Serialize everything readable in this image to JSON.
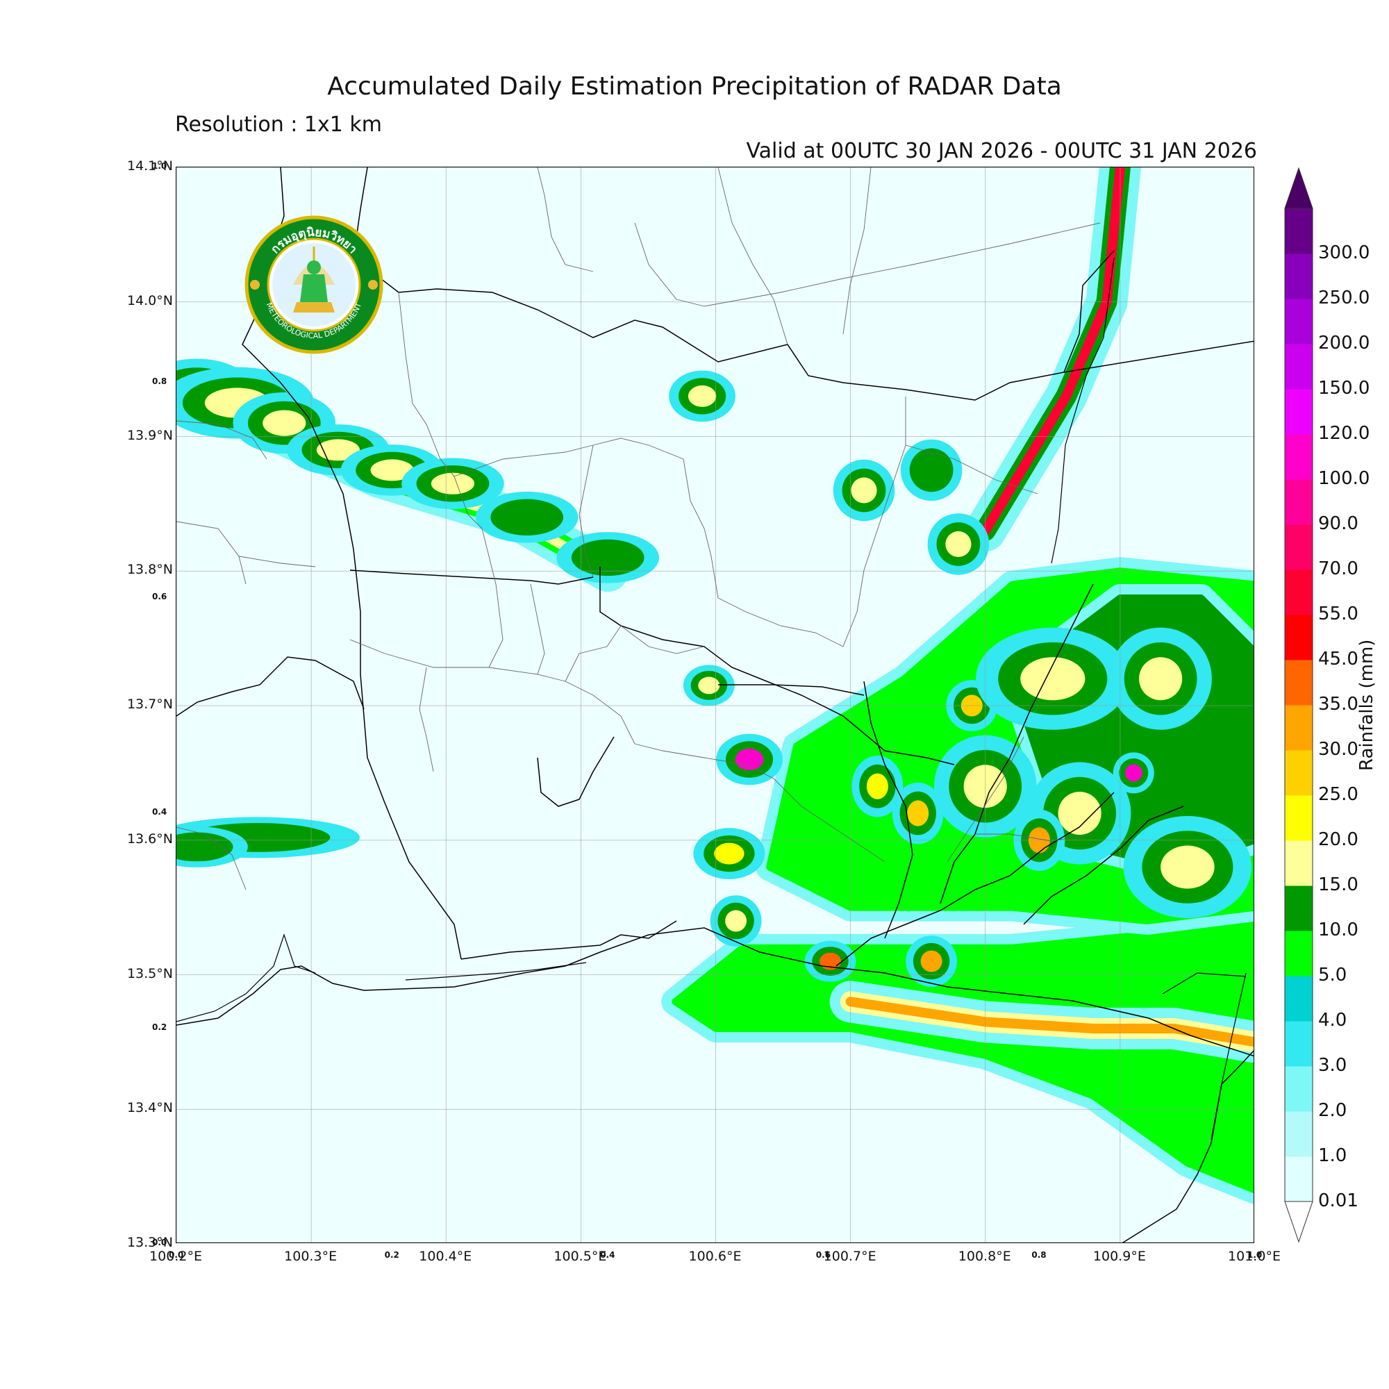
{
  "header": {
    "title": "Accumulated Daily Estimation Precipitation of RADAR Data",
    "resolution": "Resolution : 1x1 km",
    "valid": "Valid at 00UTC 30 JAN 2026 - 00UTC 31 JAN 2026"
  },
  "logo": {
    "thai_text": "กรมอุตุนิยมวิทยา",
    "english_text": "METEOROLOGICAL DEPARTMENT"
  },
  "map": {
    "lon_range": [
      100.2,
      101.0
    ],
    "lat_range": [
      13.3,
      14.1
    ],
    "lat_ticks": [
      {
        "value": 14.1,
        "label": "14.1°N"
      },
      {
        "value": 14.0,
        "label": "14.0°N"
      },
      {
        "value": 13.9,
        "label": "13.9°N"
      },
      {
        "value": 13.8,
        "label": "13.8°N"
      },
      {
        "value": 13.7,
        "label": "13.7°N"
      },
      {
        "value": 13.6,
        "label": "13.6°N"
      },
      {
        "value": 13.5,
        "label": "13.5°N"
      },
      {
        "value": 13.4,
        "label": "13.4°N"
      },
      {
        "value": 13.3,
        "label": "13.3°N"
      }
    ],
    "lon_ticks": [
      {
        "value": 100.2,
        "label": "100.2°E"
      },
      {
        "value": 100.3,
        "label": "100.3°E"
      },
      {
        "value": 100.4,
        "label": "100.4°E"
      },
      {
        "value": 100.5,
        "label": "100.5°E"
      },
      {
        "value": 100.6,
        "label": "100.6°E"
      },
      {
        "value": 100.7,
        "label": "100.7°E"
      },
      {
        "value": 100.8,
        "label": "100.8°E"
      },
      {
        "value": 100.9,
        "label": "100.9°E"
      },
      {
        "value": 101.0,
        "label": "101.0°E"
      }
    ],
    "minor_y_ticks": [
      {
        "value": 1.0,
        "label": "1.0"
      },
      {
        "value": 0.8,
        "label": "0.8"
      },
      {
        "value": 0.6,
        "label": "0.6"
      },
      {
        "value": 0.4,
        "label": "0.4"
      },
      {
        "value": 0.2,
        "label": "0.2"
      },
      {
        "value": 0.0,
        "label": "0.0"
      }
    ],
    "minor_x_ticks": [
      {
        "value": 0.0,
        "label": "0.0"
      },
      {
        "value": 0.2,
        "label": "0.2"
      },
      {
        "value": 0.4,
        "label": "0.4"
      },
      {
        "value": 0.6,
        "label": "0.6"
      },
      {
        "value": 0.8,
        "label": "0.8"
      },
      {
        "value": 1.0,
        "label": "1.0"
      }
    ],
    "rain_cells": [
      {
        "lon": 100.215,
        "lat": 13.935,
        "rx": 0.022,
        "ry": 0.012,
        "mm": 15
      },
      {
        "lon": 100.245,
        "lat": 13.925,
        "rx": 0.03,
        "ry": 0.014,
        "mm": 15
      },
      {
        "lon": 100.28,
        "lat": 13.91,
        "rx": 0.02,
        "ry": 0.012,
        "mm": 15
      },
      {
        "lon": 100.32,
        "lat": 13.89,
        "rx": 0.02,
        "ry": 0.01,
        "mm": 15
      },
      {
        "lon": 100.36,
        "lat": 13.875,
        "rx": 0.02,
        "ry": 0.01,
        "mm": 15
      },
      {
        "lon": 100.405,
        "lat": 13.865,
        "rx": 0.02,
        "ry": 0.01,
        "mm": 15
      },
      {
        "lon": 100.46,
        "lat": 13.84,
        "rx": 0.02,
        "ry": 0.01,
        "mm": 10
      },
      {
        "lon": 100.52,
        "lat": 13.81,
        "rx": 0.02,
        "ry": 0.01,
        "mm": 10
      },
      {
        "lon": 100.26,
        "lat": 13.602,
        "rx": 0.04,
        "ry": 0.008,
        "mm": 10
      },
      {
        "lon": 100.215,
        "lat": 13.595,
        "rx": 0.02,
        "ry": 0.008,
        "mm": 10
      },
      {
        "lon": 100.59,
        "lat": 13.93,
        "rx": 0.013,
        "ry": 0.01,
        "mm": 15
      },
      {
        "lon": 100.625,
        "lat": 13.66,
        "rx": 0.013,
        "ry": 0.01,
        "mm": 100
      },
      {
        "lon": 100.61,
        "lat": 13.59,
        "rx": 0.014,
        "ry": 0.01,
        "mm": 20
      },
      {
        "lon": 100.595,
        "lat": 13.715,
        "rx": 0.01,
        "ry": 0.008,
        "mm": 15
      },
      {
        "lon": 100.615,
        "lat": 13.54,
        "rx": 0.01,
        "ry": 0.01,
        "mm": 15
      },
      {
        "lon": 100.685,
        "lat": 13.51,
        "rx": 0.01,
        "ry": 0.008,
        "mm": 35
      },
      {
        "lon": 100.71,
        "lat": 13.86,
        "rx": 0.012,
        "ry": 0.012,
        "mm": 15
      },
      {
        "lon": 100.76,
        "lat": 13.875,
        "rx": 0.012,
        "ry": 0.012,
        "mm": 10
      },
      {
        "lon": 100.78,
        "lat": 13.82,
        "rx": 0.012,
        "ry": 0.012,
        "mm": 15
      },
      {
        "lon": 100.91,
        "lat": 13.65,
        "rx": 0.008,
        "ry": 0.008,
        "mm": 100
      },
      {
        "lon": 100.79,
        "lat": 13.7,
        "rx": 0.01,
        "ry": 0.01,
        "mm": 25
      },
      {
        "lon": 100.76,
        "lat": 13.51,
        "rx": 0.01,
        "ry": 0.01,
        "mm": 30
      },
      {
        "lon": 100.8,
        "lat": 13.64,
        "rx": 0.02,
        "ry": 0.02,
        "mm": 15
      },
      {
        "lon": 100.87,
        "lat": 13.62,
        "rx": 0.02,
        "ry": 0.02,
        "mm": 15
      },
      {
        "lon": 100.95,
        "lat": 13.58,
        "rx": 0.025,
        "ry": 0.02,
        "mm": 15
      },
      {
        "lon": 100.85,
        "lat": 13.72,
        "rx": 0.03,
        "ry": 0.02,
        "mm": 15
      },
      {
        "lon": 100.93,
        "lat": 13.72,
        "rx": 0.02,
        "ry": 0.02,
        "mm": 15
      },
      {
        "lon": 100.84,
        "lat": 13.6,
        "rx": 0.01,
        "ry": 0.012,
        "mm": 30
      },
      {
        "lon": 100.75,
        "lat": 13.62,
        "rx": 0.01,
        "ry": 0.012,
        "mm": 25
      },
      {
        "lon": 100.72,
        "lat": 13.64,
        "rx": 0.01,
        "ry": 0.012,
        "mm": 20
      }
    ],
    "rain_bands": [
      {
        "points": [
          [
            100.2,
            13.94
          ],
          [
            100.26,
            13.91
          ],
          [
            100.35,
            13.87
          ],
          [
            100.45,
            13.84
          ],
          [
            100.52,
            13.8
          ]
        ],
        "width_mm": 5,
        "core_mm": 15
      },
      {
        "points": [
          [
            100.9,
            14.1
          ],
          [
            100.89,
            14.0
          ],
          [
            100.86,
            13.93
          ],
          [
            100.83,
            13.88
          ],
          [
            100.8,
            13.83
          ]
        ],
        "width_mm": 10,
        "core_mm": 55
      },
      {
        "points": [
          [
            100.7,
            13.48
          ],
          [
            100.8,
            13.465
          ],
          [
            100.88,
            13.46
          ],
          [
            100.94,
            13.46
          ],
          [
            101.0,
            13.45
          ]
        ],
        "width_mm": 15,
        "core_mm": 30
      }
    ],
    "region_fills": [
      {
        "points": [
          [
            100.57,
            13.48
          ],
          [
            100.62,
            13.52
          ],
          [
            100.72,
            13.52
          ],
          [
            100.82,
            13.52
          ],
          [
            100.92,
            13.53
          ],
          [
            101.0,
            13.58
          ],
          [
            101.0,
            13.34
          ],
          [
            100.95,
            13.36
          ],
          [
            100.88,
            13.41
          ],
          [
            100.8,
            13.44
          ],
          [
            100.7,
            13.46
          ],
          [
            100.6,
            13.46
          ]
        ],
        "mm": 5
      },
      {
        "points": [
          [
            100.66,
            13.67
          ],
          [
            100.74,
            13.72
          ],
          [
            100.82,
            13.79
          ],
          [
            100.9,
            13.8
          ],
          [
            101.0,
            13.79
          ],
          [
            101.0,
            13.55
          ],
          [
            100.92,
            13.54
          ],
          [
            100.82,
            13.55
          ],
          [
            100.7,
            13.55
          ],
          [
            100.64,
            13.58
          ]
        ],
        "mm": 5
      },
      {
        "points": [
          [
            100.82,
            13.72
          ],
          [
            100.9,
            13.78
          ],
          [
            100.96,
            13.78
          ],
          [
            101.0,
            13.74
          ],
          [
            101.0,
            13.6
          ],
          [
            100.94,
            13.58
          ],
          [
            100.86,
            13.6
          ]
        ],
        "mm": 10
      }
    ]
  },
  "colorbar": {
    "label": "Rainfalls (mm)",
    "levels": [
      {
        "value": "0.01",
        "color": "#e0ffff"
      },
      {
        "value": "1.0",
        "color": "#b4fafa"
      },
      {
        "value": "2.0",
        "color": "#7ef7f7"
      },
      {
        "value": "3.0",
        "color": "#33e8f0"
      },
      {
        "value": "4.0",
        "color": "#00d2d2"
      },
      {
        "value": "5.0",
        "color": "#00ff00"
      },
      {
        "value": "10.0",
        "color": "#009900"
      },
      {
        "value": "15.0",
        "color": "#ffff99"
      },
      {
        "value": "20.0",
        "color": "#ffff00"
      },
      {
        "value": "25.0",
        "color": "#ffd000"
      },
      {
        "value": "30.0",
        "color": "#ffa500"
      },
      {
        "value": "35.0",
        "color": "#ff6600"
      },
      {
        "value": "45.0",
        "color": "#ff0000"
      },
      {
        "value": "55.0",
        "color": "#ff0033"
      },
      {
        "value": "70.0",
        "color": "#ff0066"
      },
      {
        "value": "90.0",
        "color": "#ff0099"
      },
      {
        "value": "100.0",
        "color": "#ff00cc"
      },
      {
        "value": "120.0",
        "color": "#ee00ff"
      },
      {
        "value": "150.0",
        "color": "#cc00ee"
      },
      {
        "value": "200.0",
        "color": "#aa00dd"
      },
      {
        "value": "250.0",
        "color": "#8800bb"
      },
      {
        "value": "300.0",
        "color": "#660088"
      }
    ]
  }
}
